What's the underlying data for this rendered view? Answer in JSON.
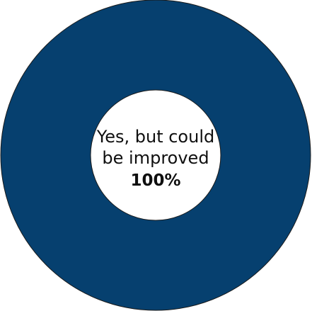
{
  "chart_data": {
    "type": "pie",
    "donut": true,
    "slices": [
      {
        "label": "Yes, but could be improved",
        "value": 100,
        "value_label": "100%",
        "color": "#06406f"
      }
    ],
    "stroke_color": "#1a1a1a",
    "hole_color": "#ffffff",
    "legend": "none"
  }
}
